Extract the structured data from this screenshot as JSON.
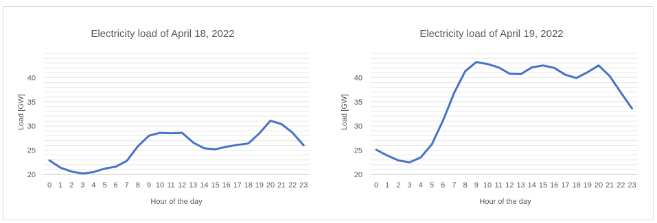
{
  "charts": [
    {
      "type": "line",
      "title": "Electricity load of April 18, 2022",
      "xlabel": "Hour of the day",
      "ylabel": "Load [GW]",
      "categories": [
        "0",
        "1",
        "2",
        "3",
        "4",
        "5",
        "6",
        "7",
        "8",
        "9",
        "10",
        "11",
        "12",
        "13",
        "14",
        "15",
        "16",
        "17",
        "18",
        "19",
        "20",
        "21",
        "22",
        "23"
      ],
      "yticks": [
        "20",
        "25",
        "30",
        "35",
        "40"
      ],
      "ylim": [
        20,
        45
      ],
      "grid": true,
      "line_color": "#4472c4",
      "values": [
        22.9,
        21.4,
        20.6,
        20.2,
        20.5,
        21.2,
        21.6,
        22.8,
        25.8,
        28.0,
        28.6,
        28.5,
        28.6,
        26.6,
        25.4,
        25.2,
        25.7,
        26.1,
        26.4,
        28.5,
        31.1,
        30.4,
        28.6,
        26.0
      ]
    },
    {
      "type": "line",
      "title": "Electricity load of April 19, 2022",
      "xlabel": "Hour of the day",
      "ylabel": "Load [GW]",
      "categories": [
        "0",
        "1",
        "2",
        "3",
        "4",
        "5",
        "6",
        "7",
        "8",
        "9",
        "10",
        "11",
        "12",
        "13",
        "14",
        "15",
        "16",
        "17",
        "18",
        "19",
        "20",
        "21",
        "22",
        "23"
      ],
      "yticks": [
        "20",
        "25",
        "30",
        "35",
        "40"
      ],
      "ylim": [
        20,
        45
      ],
      "grid": true,
      "line_color": "#4472c4",
      "values": [
        25.1,
        23.9,
        22.9,
        22.5,
        23.5,
        26.2,
        31.1,
        36.8,
        41.3,
        43.2,
        42.8,
        42.1,
        40.8,
        40.7,
        42.1,
        42.5,
        42.0,
        40.6,
        39.9,
        41.1,
        42.5,
        40.3,
        36.9,
        33.6
      ]
    }
  ]
}
